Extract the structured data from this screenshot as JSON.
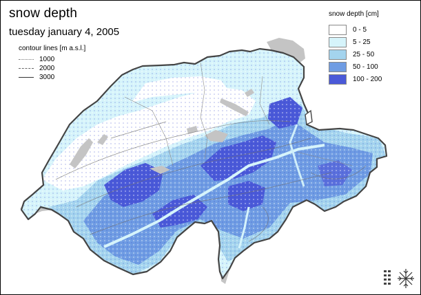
{
  "header": {
    "title": "snow depth",
    "date": "tuesday january 4, 2005"
  },
  "contour_legend": {
    "title": "contour lines [m a.s.l.]",
    "items": [
      {
        "label": "1000"
      },
      {
        "label": "2000"
      },
      {
        "label": "3000"
      }
    ]
  },
  "depth_legend": {
    "title": "snow depth [cm]",
    "classes": [
      {
        "label": "0 - 5",
        "color": "#ffffff"
      },
      {
        "label": "5 - 25",
        "color": "#d6f4fb"
      },
      {
        "label": "25 - 50",
        "color": "#a4d4ee"
      },
      {
        "label": "50 - 100",
        "color": "#6f9ce3"
      },
      {
        "label": "100 - 200",
        "color": "#4a59d8"
      }
    ]
  },
  "colors": {
    "lake": "#c4c4c4",
    "border": "#444444",
    "contour": "#707070"
  },
  "icons": {
    "logo": "snowflake-logo-icon"
  }
}
